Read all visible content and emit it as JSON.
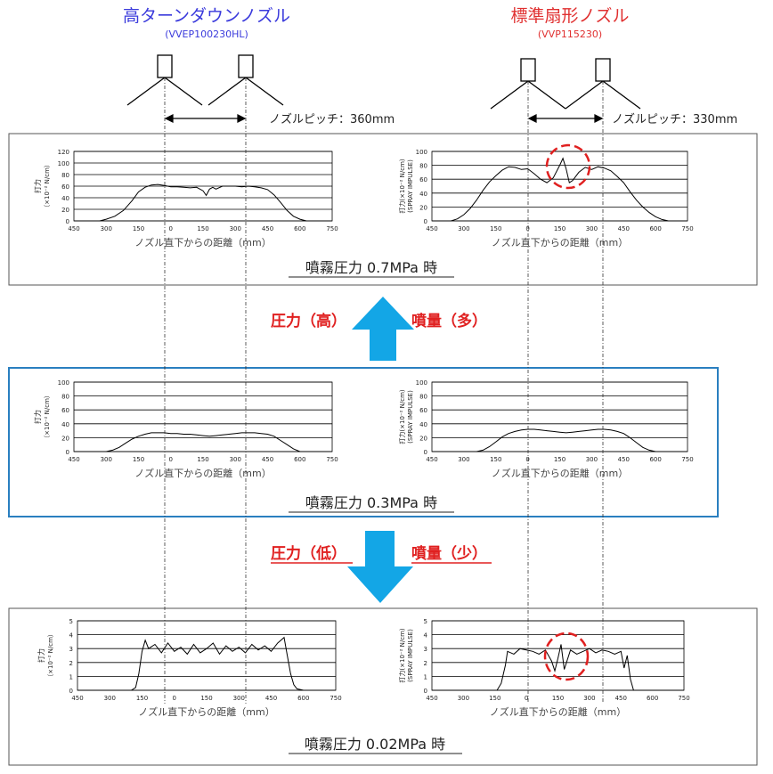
{
  "header": {
    "left_title": "高ターンダウンノズル",
    "left_model": "(VVEP100230HL)",
    "right_title": "標準扇形ノズル",
    "right_model": "(VVP115230)",
    "left_pitch": "ノズルピッチ：360mm",
    "right_pitch": "ノズルピッチ：330mm",
    "colors": {
      "left": "#3a3adc",
      "right": "#e03030",
      "arrow": "#13a6e6",
      "mid_border": "#2a7fc0"
    }
  },
  "panels": [
    {
      "caption": "噴霧圧力 0.7MPa 時"
    },
    {
      "caption": "噴霧圧力 0.3MPa 時"
    },
    {
      "caption": "噴霧圧力 0.02MPa 時"
    }
  ],
  "arrows": {
    "up_left": "圧力（高）",
    "up_right": "噴量（多）",
    "down_left": "圧力（低）",
    "down_right": "噴量（少）"
  },
  "axis_common": {
    "xlabel": "ノズル直下からの距離（mm）",
    "x_ticks": [
      "450",
      "300",
      "150",
      "0",
      "150",
      "300",
      "450",
      "600",
      "750"
    ],
    "ylabel_left": "打力",
    "ylabel_left_unit": "（×10⁻² N/cm）",
    "ylabel_right": "打力(×10⁻² N/cm)",
    "ylabel_right_sub": "(SPRAY IMPULSE)"
  },
  "chart_data": [
    {
      "type": "line",
      "panel": "0.7MPa",
      "side": "left",
      "xlabel": "ノズル直下からの距離（mm）",
      "ylabel": "打力（×10⁻² N/cm）",
      "xlim": [
        -450,
        750
      ],
      "ylim": [
        0,
        120
      ],
      "y_ticks": [
        "0",
        "20",
        "40",
        "60",
        "80",
        "100",
        "120"
      ],
      "x": [
        -450,
        -330,
        -300,
        -260,
        -220,
        -180,
        -150,
        -120,
        -90,
        -60,
        -30,
        0,
        30,
        60,
        90,
        120,
        150,
        165,
        180,
        195,
        210,
        240,
        270,
        300,
        330,
        360,
        390,
        420,
        450,
        480,
        510,
        540,
        570,
        600,
        630,
        750
      ],
      "y": [
        0,
        0,
        3,
        8,
        18,
        35,
        50,
        58,
        62,
        63,
        61,
        59,
        59,
        58,
        57,
        58,
        52,
        44,
        55,
        58,
        55,
        60,
        60,
        60,
        59,
        60,
        59,
        57,
        54,
        45,
        32,
        18,
        8,
        3,
        0,
        0
      ]
    },
    {
      "type": "line",
      "panel": "0.7MPa",
      "side": "right",
      "xlabel": "ノズル直下からの距離（mm）",
      "ylabel": "打力(×10⁻² N/cm)",
      "xlim": [
        -450,
        750
      ],
      "ylim": [
        0,
        100
      ],
      "y_ticks": [
        "0",
        "20",
        "40",
        "60",
        "80",
        "100"
      ],
      "x": [
        -450,
        -360,
        -330,
        -300,
        -270,
        -240,
        -210,
        -180,
        -150,
        -120,
        -90,
        -60,
        -30,
        0,
        30,
        60,
        90,
        120,
        150,
        165,
        180,
        195,
        210,
        240,
        270,
        300,
        330,
        360,
        390,
        420,
        450,
        480,
        510,
        540,
        570,
        600,
        630,
        660,
        750
      ],
      "y": [
        0,
        0,
        3,
        9,
        18,
        30,
        44,
        56,
        65,
        73,
        78,
        77,
        74,
        75,
        68,
        60,
        55,
        62,
        80,
        90,
        75,
        55,
        58,
        70,
        77,
        74,
        78,
        76,
        72,
        64,
        55,
        42,
        30,
        20,
        12,
        6,
        2,
        0,
        0
      ],
      "annotation": "dashed red circle around central peak"
    },
    {
      "type": "line",
      "panel": "0.3MPa",
      "side": "left",
      "xlabel": "ノズル直下からの距離（mm）",
      "ylabel": "打力（×10⁻² N/cm）",
      "xlim": [
        -450,
        750
      ],
      "ylim": [
        0,
        100
      ],
      "y_ticks": [
        "0",
        "20",
        "40",
        "60",
        "80",
        "100"
      ],
      "x": [
        -450,
        -300,
        -270,
        -240,
        -210,
        -180,
        -150,
        -120,
        -90,
        -60,
        -30,
        0,
        30,
        60,
        90,
        120,
        150,
        180,
        210,
        240,
        270,
        300,
        330,
        360,
        390,
        420,
        450,
        480,
        510,
        540,
        570,
        600,
        750
      ],
      "y": [
        0,
        0,
        2,
        6,
        12,
        18,
        22,
        25,
        27,
        27,
        27,
        26,
        26,
        25,
        25,
        24,
        23,
        22,
        23,
        24,
        25,
        26,
        27,
        27,
        27,
        26,
        25,
        22,
        16,
        10,
        4,
        0,
        0
      ]
    },
    {
      "type": "line",
      "panel": "0.3MPa",
      "side": "right",
      "xlabel": "ノズル直下からの距離（mm）",
      "ylabel": "打力(×10⁻² N/cm)",
      "xlim": [
        -450,
        750
      ],
      "ylim": [
        0,
        100
      ],
      "y_ticks": [
        "0",
        "20",
        "40",
        "60",
        "80",
        "100"
      ],
      "x": [
        -450,
        -240,
        -210,
        -180,
        -150,
        -120,
        -90,
        -60,
        -30,
        0,
        30,
        60,
        90,
        120,
        150,
        180,
        210,
        240,
        270,
        300,
        330,
        360,
        390,
        420,
        450,
        480,
        510,
        540,
        570,
        600,
        630,
        750
      ],
      "y": [
        0,
        0,
        2,
        7,
        14,
        21,
        26,
        29,
        31,
        32,
        32,
        31,
        30,
        29,
        28,
        27,
        28,
        29,
        30,
        31,
        32,
        32,
        31,
        29,
        26,
        20,
        13,
        6,
        2,
        0,
        0,
        0
      ]
    },
    {
      "type": "line",
      "panel": "0.02MPa",
      "side": "left",
      "xlabel": "ノズル直下からの距離（mm）",
      "ylabel": "打力（×10⁻² N/cm）",
      "xlim": [
        -450,
        750
      ],
      "ylim": [
        0,
        5
      ],
      "y_ticks": [
        "0",
        "1",
        "2",
        "3",
        "4",
        "5"
      ],
      "x": [
        -450,
        -200,
        -180,
        -165,
        -150,
        -135,
        -120,
        -90,
        -60,
        -30,
        0,
        30,
        60,
        90,
        120,
        150,
        180,
        210,
        240,
        270,
        300,
        330,
        360,
        390,
        420,
        450,
        480,
        510,
        525,
        540,
        555,
        570,
        600,
        750
      ],
      "y": [
        0,
        0,
        0.2,
        1.2,
        2.8,
        3.6,
        3.0,
        3.3,
        2.7,
        3.4,
        2.8,
        3.1,
        2.6,
        3.3,
        2.7,
        3.0,
        3.4,
        2.6,
        3.2,
        2.8,
        3.1,
        2.7,
        3.3,
        2.9,
        3.2,
        2.8,
        3.4,
        3.8,
        2.5,
        1.2,
        0.4,
        0.1,
        0,
        0
      ]
    },
    {
      "type": "line",
      "panel": "0.02MPa",
      "side": "right",
      "xlabel": "ノズル直下からの距離（mm）",
      "ylabel": "打力(×10⁻² N/cm)",
      "xlim": [
        -450,
        750
      ],
      "ylim": [
        0,
        5
      ],
      "y_ticks": [
        "0",
        "1",
        "2",
        "3",
        "4",
        "5"
      ],
      "x": [
        -450,
        -140,
        -120,
        -100,
        -90,
        -60,
        -30,
        0,
        30,
        60,
        90,
        120,
        135,
        150,
        165,
        180,
        195,
        210,
        240,
        270,
        300,
        330,
        360,
        390,
        420,
        450,
        465,
        480,
        495,
        510,
        750
      ],
      "y": [
        0,
        0,
        0.5,
        1.8,
        2.8,
        2.6,
        3.0,
        2.9,
        2.8,
        2.6,
        2.9,
        2.1,
        1.4,
        2.3,
        3.3,
        1.5,
        2.2,
        2.9,
        2.6,
        2.8,
        3.0,
        2.7,
        2.9,
        2.8,
        2.6,
        2.8,
        1.6,
        2.5,
        0.8,
        0,
        0
      ],
      "annotation": "dashed red circle around central dip"
    }
  ]
}
